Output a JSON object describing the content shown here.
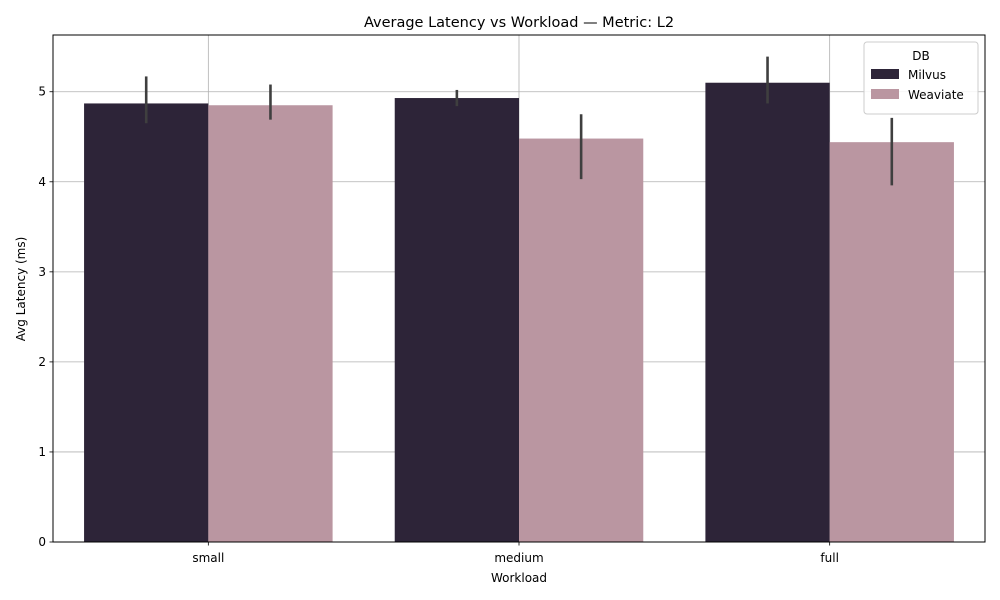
{
  "chart_data": {
    "type": "bar",
    "title": "Average Latency vs Workload — Metric: L2",
    "xlabel": "Workload",
    "ylabel": "Avg Latency (ms)",
    "categories": [
      "small",
      "medium",
      "full"
    ],
    "ylim": [
      0,
      5.63
    ],
    "yticks": [
      0,
      1,
      2,
      3,
      4,
      5
    ],
    "grid": true,
    "legend": {
      "title": "DB",
      "placement": "top-right"
    },
    "series": [
      {
        "name": "Milvus",
        "color": "#2d2438",
        "values": [
          4.87,
          4.93,
          5.1
        ],
        "err_low": [
          4.65,
          4.84,
          4.87
        ],
        "err_high": [
          5.17,
          5.02,
          5.39
        ]
      },
      {
        "name": "Weaviate",
        "color": "#ba96a1",
        "values": [
          4.85,
          4.48,
          4.44
        ],
        "err_low": [
          4.69,
          4.03,
          3.96
        ],
        "err_high": [
          5.08,
          4.75,
          4.71
        ]
      }
    ],
    "errorbar_color": "#3f3f3f"
  }
}
